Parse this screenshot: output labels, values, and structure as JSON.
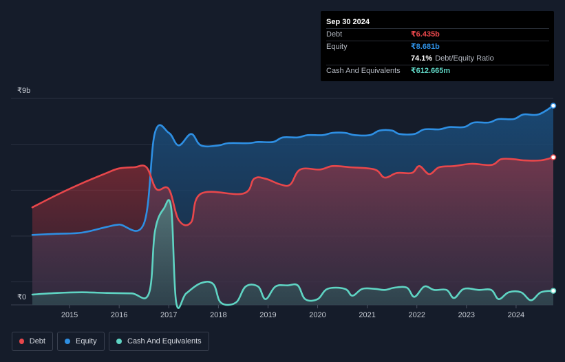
{
  "chart_data": {
    "type": "area",
    "y_axis": {
      "top_label": "₹9b",
      "bottom_label": "₹0",
      "ylim": [
        0,
        9
      ]
    },
    "x_ticks": [
      "2015",
      "2016",
      "2017",
      "2018",
      "2019",
      "2020",
      "2021",
      "2022",
      "2023",
      "2024"
    ],
    "xlim": [
      2014.25,
      2024.75
    ],
    "series": [
      {
        "name": "Debt",
        "color": "#e8474b",
        "points": [
          [
            2014.25,
            4.25
          ],
          [
            2014.75,
            4.8
          ],
          [
            2015.25,
            5.3
          ],
          [
            2015.75,
            5.75
          ],
          [
            2016.0,
            5.95
          ],
          [
            2016.3,
            6.0
          ],
          [
            2016.55,
            6.0
          ],
          [
            2016.75,
            5.05
          ],
          [
            2017.0,
            5.05
          ],
          [
            2017.2,
            3.7
          ],
          [
            2017.45,
            3.6
          ],
          [
            2017.65,
            4.85
          ],
          [
            2018.5,
            4.85
          ],
          [
            2018.72,
            5.5
          ],
          [
            2018.95,
            5.5
          ],
          [
            2019.25,
            5.25
          ],
          [
            2019.45,
            5.25
          ],
          [
            2019.65,
            5.9
          ],
          [
            2020.05,
            5.9
          ],
          [
            2020.3,
            6.05
          ],
          [
            2020.65,
            6.0
          ],
          [
            2021.15,
            5.9
          ],
          [
            2021.35,
            5.55
          ],
          [
            2021.6,
            5.75
          ],
          [
            2021.9,
            5.75
          ],
          [
            2022.05,
            6.05
          ],
          [
            2022.25,
            5.7
          ],
          [
            2022.45,
            6.0
          ],
          [
            2022.75,
            6.05
          ],
          [
            2023.1,
            6.15
          ],
          [
            2023.5,
            6.1
          ],
          [
            2023.7,
            6.35
          ],
          [
            2023.95,
            6.35
          ],
          [
            2024.15,
            6.3
          ],
          [
            2024.5,
            6.3
          ],
          [
            2024.75,
            6.435
          ]
        ]
      },
      {
        "name": "Equity",
        "color": "#2e8fe3",
        "points": [
          [
            2014.25,
            3.05
          ],
          [
            2014.75,
            3.1
          ],
          [
            2015.25,
            3.15
          ],
          [
            2015.75,
            3.4
          ],
          [
            2016.0,
            3.5
          ],
          [
            2016.5,
            3.55
          ],
          [
            2016.72,
            7.5
          ],
          [
            2017.0,
            7.5
          ],
          [
            2017.2,
            6.95
          ],
          [
            2017.45,
            7.45
          ],
          [
            2017.65,
            6.95
          ],
          [
            2018.0,
            6.95
          ],
          [
            2018.2,
            7.05
          ],
          [
            2018.6,
            7.05
          ],
          [
            2018.8,
            7.1
          ],
          [
            2019.1,
            7.1
          ],
          [
            2019.3,
            7.3
          ],
          [
            2019.6,
            7.3
          ],
          [
            2019.8,
            7.4
          ],
          [
            2020.1,
            7.4
          ],
          [
            2020.3,
            7.5
          ],
          [
            2020.55,
            7.5
          ],
          [
            2020.75,
            7.4
          ],
          [
            2021.05,
            7.4
          ],
          [
            2021.25,
            7.6
          ],
          [
            2021.5,
            7.6
          ],
          [
            2021.65,
            7.45
          ],
          [
            2021.95,
            7.45
          ],
          [
            2022.15,
            7.65
          ],
          [
            2022.45,
            7.65
          ],
          [
            2022.65,
            7.75
          ],
          [
            2022.95,
            7.75
          ],
          [
            2023.15,
            7.95
          ],
          [
            2023.45,
            7.95
          ],
          [
            2023.65,
            8.1
          ],
          [
            2023.95,
            8.1
          ],
          [
            2024.15,
            8.3
          ],
          [
            2024.45,
            8.3
          ],
          [
            2024.75,
            8.681
          ]
        ]
      },
      {
        "name": "Cash And Equivalents",
        "color": "#5fd4c3",
        "points": [
          [
            2014.25,
            0.45
          ],
          [
            2014.75,
            0.52
          ],
          [
            2015.25,
            0.55
          ],
          [
            2015.75,
            0.52
          ],
          [
            2016.25,
            0.5
          ],
          [
            2016.6,
            0.5
          ],
          [
            2016.72,
            3.2
          ],
          [
            2016.9,
            4.2
          ],
          [
            2017.05,
            4.2
          ],
          [
            2017.15,
            0.1
          ],
          [
            2017.35,
            0.5
          ],
          [
            2017.65,
            0.95
          ],
          [
            2017.9,
            0.9
          ],
          [
            2018.05,
            0.1
          ],
          [
            2018.35,
            0.1
          ],
          [
            2018.55,
            0.8
          ],
          [
            2018.8,
            0.8
          ],
          [
            2018.95,
            0.25
          ],
          [
            2019.15,
            0.8
          ],
          [
            2019.4,
            0.85
          ],
          [
            2019.6,
            0.85
          ],
          [
            2019.75,
            0.25
          ],
          [
            2020.0,
            0.25
          ],
          [
            2020.2,
            0.7
          ],
          [
            2020.55,
            0.7
          ],
          [
            2020.7,
            0.4
          ],
          [
            2020.9,
            0.7
          ],
          [
            2021.15,
            0.7
          ],
          [
            2021.35,
            0.65
          ],
          [
            2021.55,
            0.75
          ],
          [
            2021.8,
            0.75
          ],
          [
            2021.95,
            0.35
          ],
          [
            2022.15,
            0.8
          ],
          [
            2022.35,
            0.65
          ],
          [
            2022.6,
            0.65
          ],
          [
            2022.75,
            0.3
          ],
          [
            2022.95,
            0.7
          ],
          [
            2023.25,
            0.65
          ],
          [
            2023.5,
            0.65
          ],
          [
            2023.65,
            0.25
          ],
          [
            2023.85,
            0.55
          ],
          [
            2024.1,
            0.55
          ],
          [
            2024.3,
            0.2
          ],
          [
            2024.5,
            0.55
          ],
          [
            2024.75,
            0.613
          ]
        ]
      }
    ]
  },
  "tooltip": {
    "date": "Sep 30 2024",
    "debt": {
      "label": "Debt",
      "value": "₹6.435b"
    },
    "equity": {
      "label": "Equity",
      "value": "₹8.681b"
    },
    "ratio": {
      "value": "74.1%",
      "label": "Debt/Equity Ratio"
    },
    "cash": {
      "label": "Cash And Equivalents",
      "value": "₹612.665m"
    }
  },
  "legend": [
    {
      "label": "Debt",
      "color": "#e8474b"
    },
    {
      "label": "Equity",
      "color": "#2e8fe3"
    },
    {
      "label": "Cash And Equivalents",
      "color": "#5fd4c3"
    }
  ]
}
